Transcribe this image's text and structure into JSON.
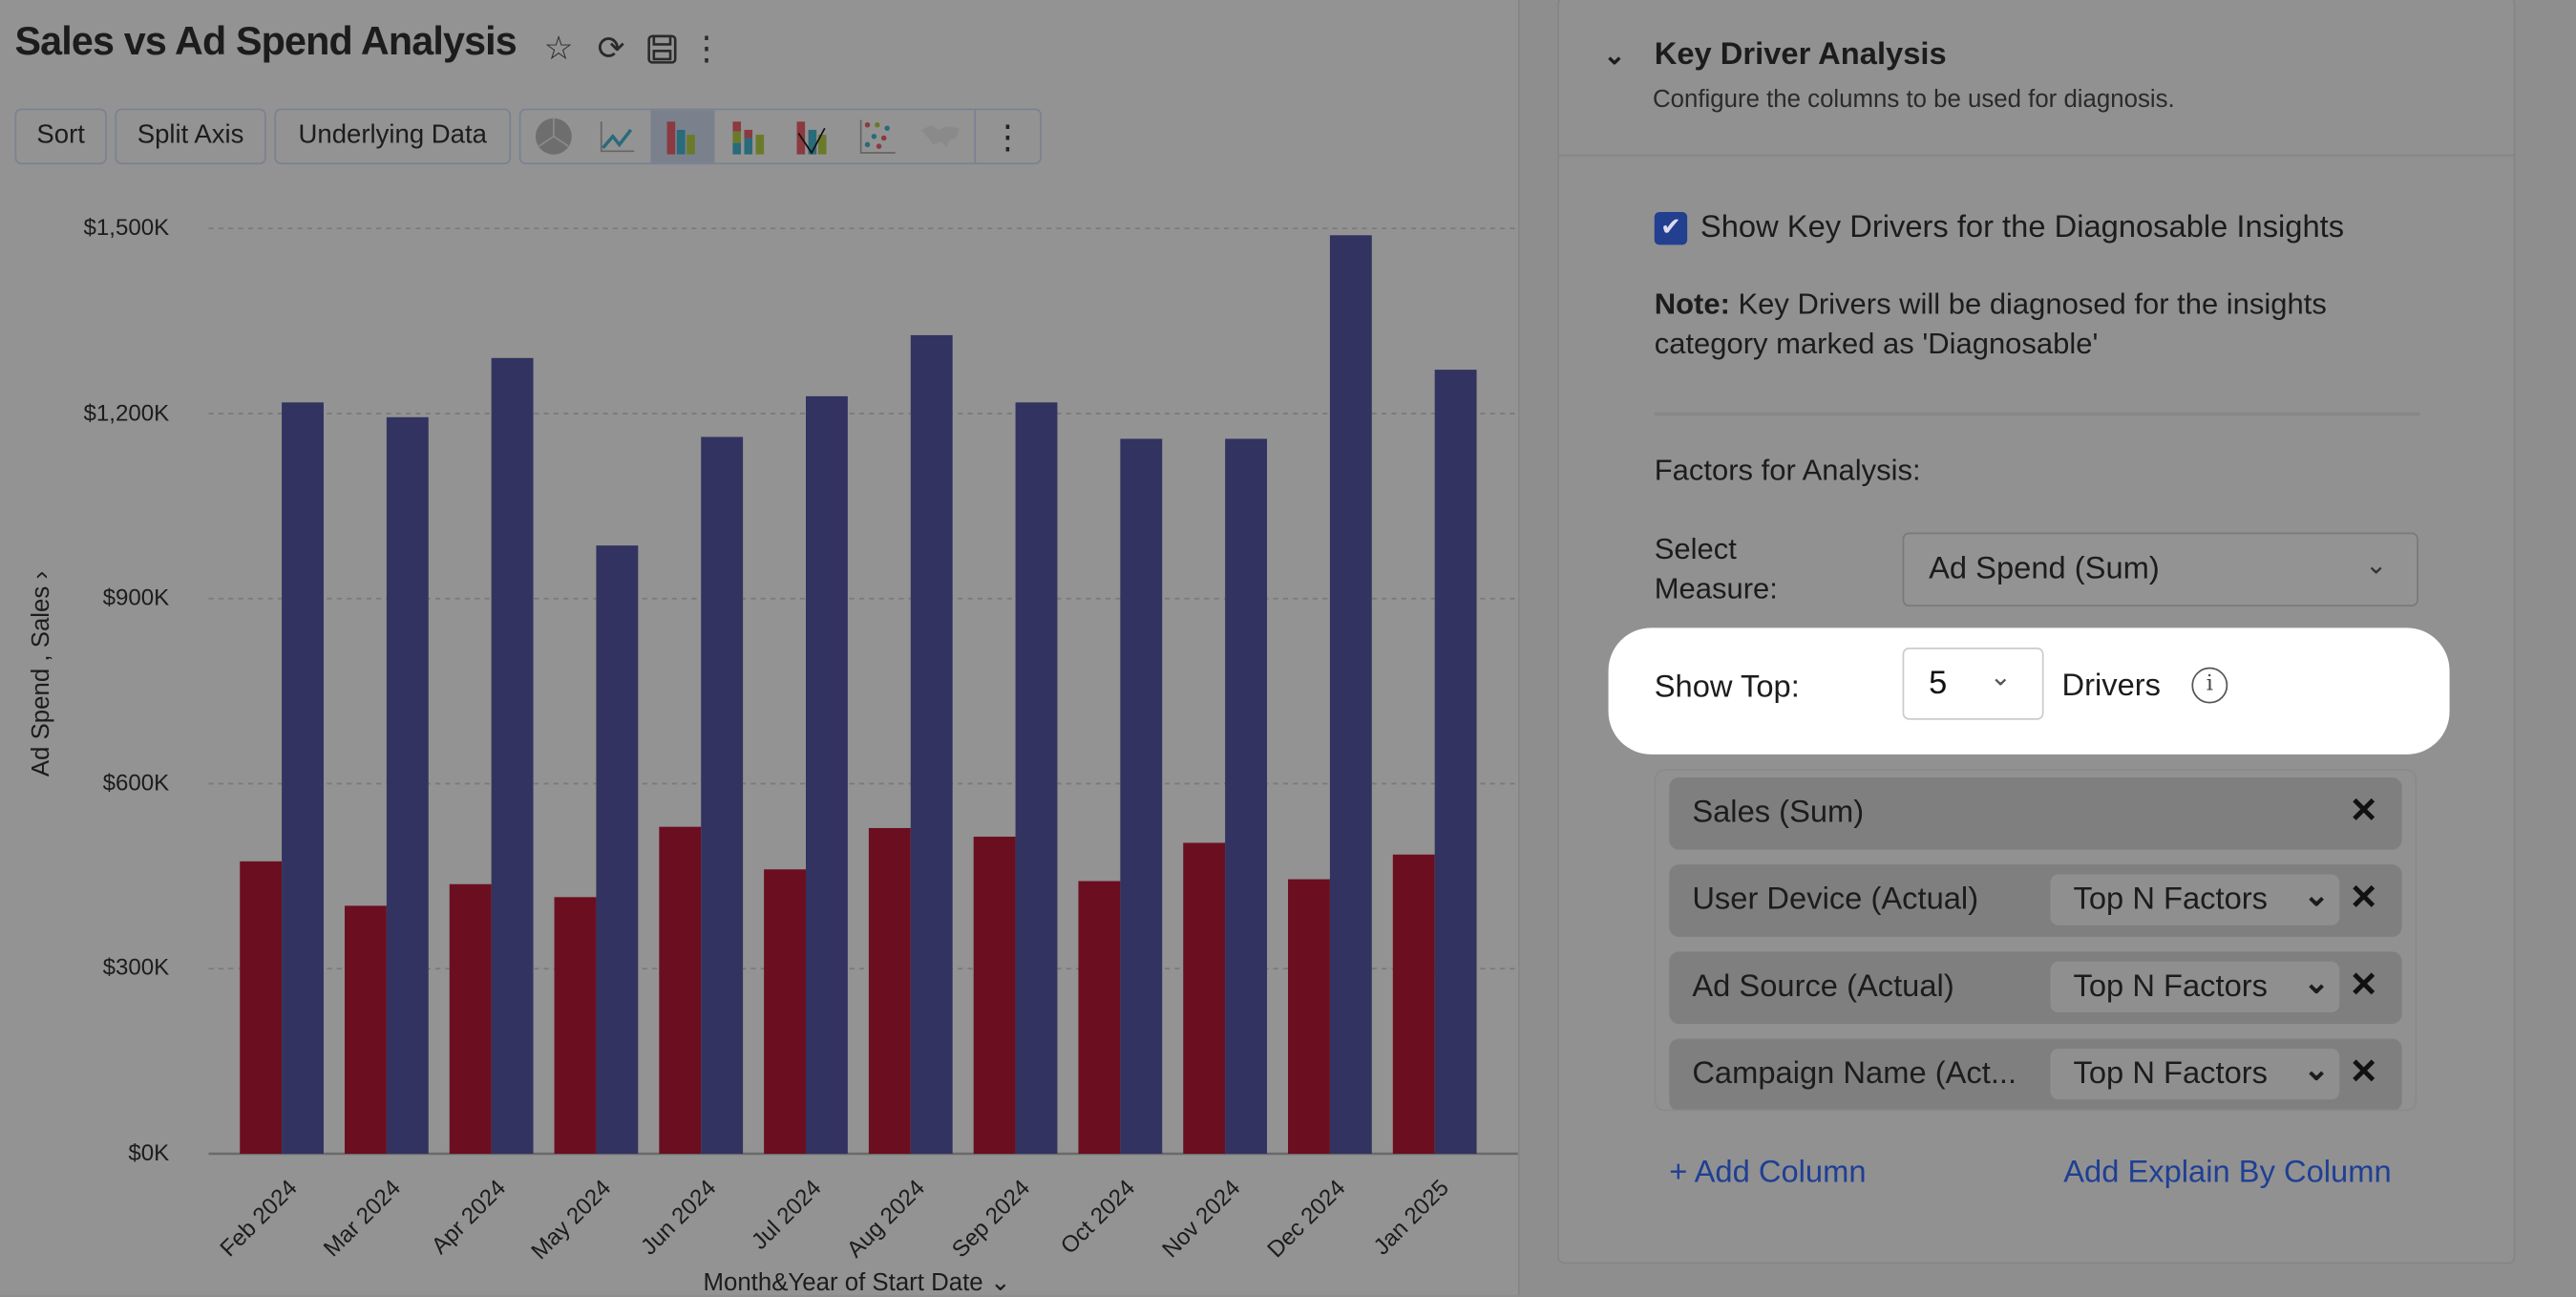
{
  "report": {
    "title": "Sales vs Ad Spend Analysis",
    "icons": [
      "star-icon",
      "refresh-icon",
      "save-icon",
      "more-icon"
    ],
    "buttons": {
      "sort": "Sort",
      "split_axis": "Split Axis",
      "underlying_data": "Underlying Data"
    },
    "chart_types": [
      "pie",
      "line",
      "bar",
      "stacked-bar",
      "combo",
      "scatter",
      "map"
    ],
    "active_chart_type": "bar"
  },
  "chart_data": {
    "type": "bar",
    "categories": [
      "Feb 2024",
      "Mar 2024",
      "Apr 2024",
      "May 2024",
      "Jun 2024",
      "Jul 2024",
      "Aug 2024",
      "Sep 2024",
      "Oct 2024",
      "Nov 2024",
      "Dec 2024",
      "Jan 2025"
    ],
    "series": [
      {
        "name": "Ad Spend",
        "color": "#6b0f20",
        "values": [
          474,
          402,
          437,
          416,
          530,
          461,
          528,
          514,
          442,
          504,
          445,
          485
        ]
      },
      {
        "name": "Sales",
        "color": "#323360",
        "values": [
          1218,
          1194,
          1290,
          986,
          1162,
          1228,
          1327,
          1218,
          1159,
          1159,
          1489,
          1271
        ]
      }
    ],
    "units": "$K",
    "ylabel": "Ad Spend , Sales",
    "xlabel": "Month&Year of Start Date",
    "ylim": [
      0,
      1500
    ],
    "yticks": [
      "$0K",
      "$300K",
      "$600K",
      "$900K",
      "$1,200K",
      "$1,500K"
    ],
    "grid": true
  },
  "panel": {
    "heading": "Key Driver Analysis",
    "subtitle": "Configure the columns to be used for diagnosis.",
    "checkbox_label": "Show Key Drivers for the Diagnosable Insights",
    "checkbox_checked": true,
    "note_label": "Note:",
    "note_text": " Key Drivers will be diagnosed for the insights category marked as 'Diagnosable'",
    "factors_label": "Factors for Analysis:",
    "measure_label": "Select Measure:",
    "measure_value": "Ad Spend (Sum)",
    "show_top_label": "Show Top:",
    "show_top_value": "5",
    "drivers_label": "Drivers",
    "columns": [
      {
        "name": "Sales (Sum)",
        "option": null
      },
      {
        "name": "User Device (Actual)",
        "option": "Top N Factors"
      },
      {
        "name": "Ad Source (Actual)",
        "option": "Top N Factors"
      },
      {
        "name": "Campaign Name (Act...",
        "option": "Top N Factors"
      }
    ],
    "add_column": "+ Add Column",
    "add_explain": "Add Explain By Column",
    "accent": "#1f3f94"
  }
}
